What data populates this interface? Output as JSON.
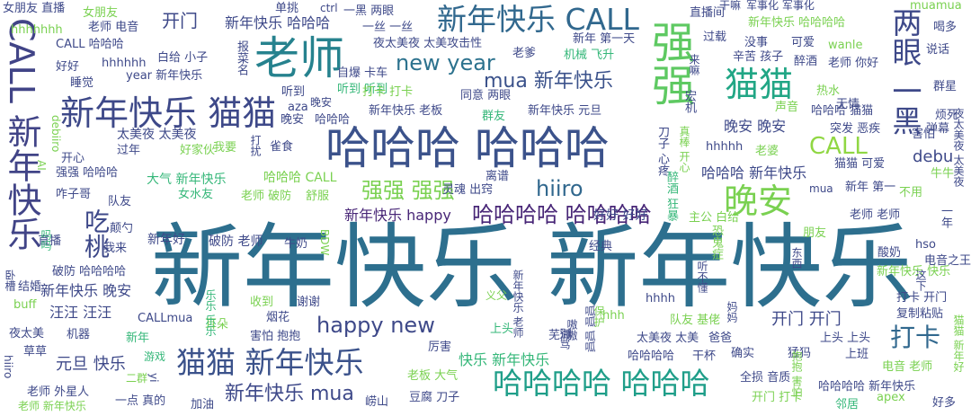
{
  "words": [
    {
      "text": "新年快乐 新年快乐",
      "color": "#2d6f8e"
    },
    {
      "text": "哈哈哈 哈哈哈",
      "color": "#3b528b"
    },
    {
      "text": "新年快乐 CALL",
      "color": "#31688e"
    },
    {
      "text": "老师",
      "color": "#26828e"
    },
    {
      "text": "新年快乐 猫猫",
      "color": "#3e4989"
    },
    {
      "text": "CALL 新年快乐",
      "color": "#414487"
    },
    {
      "text": "强强",
      "color": "#5ec962"
    },
    {
      "text": "两眼 一黑",
      "color": "#3e4989"
    },
    {
      "text": "猫猫",
      "color": "#21a685"
    },
    {
      "text": "猫猫 新年快乐",
      "color": "#3b528b"
    },
    {
      "text": "哈哈哈哈 哈哈哈",
      "color": "#1f9e89"
    },
    {
      "text": "晚安",
      "color": "#7ad151"
    },
    {
      "text": "new year",
      "color": "#2c728e"
    },
    {
      "text": "CALL",
      "color": "#90d743"
    },
    {
      "text": "吃桃",
      "color": "#3e4989"
    },
    {
      "text": "打卡",
      "color": "#31688e"
    },
    {
      "text": "happy new",
      "color": "#3e4989"
    },
    {
      "text": "强强 强强",
      "color": "#7ad151"
    },
    {
      "text": "hiiro",
      "color": "#31688e"
    },
    {
      "text": "哈哈哈哈 哈哈哈哈",
      "color": "#482677"
    },
    {
      "text": "新年快乐 mua",
      "color": "#3e4989"
    },
    {
      "text": "mua 新年快乐",
      "color": "#3b528b"
    },
    {
      "text": "开门",
      "color": "#3e4989"
    },
    {
      "text": "开门 开门",
      "color": "#3e4989"
    },
    {
      "text": "元旦 快乐",
      "color": "#3e4989"
    },
    {
      "text": "debu",
      "color": "#3e4989"
    },
    {
      "text": "快乐 新年快乐",
      "color": "#35b779"
    },
    {
      "text": "新年快乐 happy",
      "color": "#482677"
    },
    {
      "text": "新年快乐 晚安",
      "color": "#3e4989"
    },
    {
      "text": "汪汪 汪汪",
      "color": "#3e4989"
    },
    {
      "text": "新年快乐 哈哈哈",
      "color": "#3e4989"
    },
    {
      "text": "哈哈哈 新年快乐",
      "color": "#3e4989"
    },
    {
      "text": "晚安 晚安",
      "color": "#3e4989"
    },
    {
      "text": "好好 好好",
      "color": "#3e4989"
    },
    {
      "text": "破防 老师",
      "color": "#3e4989"
    },
    {
      "text": "新年好",
      "color": "#3e4989"
    },
    {
      "text": "大气 新年快乐",
      "color": "#35b779"
    },
    {
      "text": "哈哈哈 CALL",
      "color": "#7ad151"
    },
    {
      "text": "太美夜 太美夜",
      "color": "#3e4989"
    },
    {
      "text": "女朋友 直播",
      "color": "#3e4989"
    },
    {
      "text": "女朋友",
      "color": "#7ad151"
    },
    {
      "text": "单挑",
      "color": "#3e4989"
    },
    {
      "text": "ctrl",
      "color": "#3e4989"
    },
    {
      "text": "一黑 两眼",
      "color": "#3e4989"
    },
    {
      "text": "一丝 一丝",
      "color": "#3e4989"
    },
    {
      "text": "夜太美夜 太美攻击性",
      "color": "#3e4989"
    },
    {
      "text": "hhhhhhh",
      "color": "#7ad151"
    },
    {
      "text": "老师 电音",
      "color": "#3e4989"
    },
    {
      "text": "CALL 哈哈哈",
      "color": "#3e4989"
    },
    {
      "text": "好好",
      "color": "#3e4989"
    },
    {
      "text": "hhhhhh",
      "color": "#3e4989"
    },
    {
      "text": "白给 小子",
      "color": "#3e4989"
    },
    {
      "text": "year 新年快乐",
      "color": "#3e4989"
    },
    {
      "text": "直播间",
      "color": "#3e4989"
    },
    {
      "text": "干嘛",
      "color": "#3e4989"
    },
    {
      "text": "军事化 军事化",
      "color": "#3e4989"
    },
    {
      "text": "muamua",
      "color": "#7ad151"
    },
    {
      "text": "喝多",
      "color": "#3e4989"
    },
    {
      "text": "新年快乐 哈哈哈哈",
      "color": "#7ad151"
    },
    {
      "text": "说话",
      "color": "#3e4989"
    },
    {
      "text": "过载",
      "color": "#3e4989"
    },
    {
      "text": "没事",
      "color": "#3e4989"
    },
    {
      "text": "可爱",
      "color": "#3e4989"
    },
    {
      "text": "wanle",
      "color": "#7ad151"
    },
    {
      "text": "辛苦 孩子",
      "color": "#3e4989"
    },
    {
      "text": "醉酒",
      "color": "#3e4989"
    },
    {
      "text": "老师 你好",
      "color": "#3e4989"
    },
    {
      "text": "新年 第一天",
      "color": "#3e4989"
    },
    {
      "text": "老爹",
      "color": "#3e4989"
    },
    {
      "text": "机械 飞升",
      "color": "#35b779"
    },
    {
      "text": "自爆 卡车",
      "color": "#3e4989"
    },
    {
      "text": "听到 听到",
      "color": "#35b779"
    },
    {
      "text": "听到",
      "color": "#3e4989"
    },
    {
      "text": "打卡 打卡",
      "color": "#7ad151"
    },
    {
      "text": "同意 两眼",
      "color": "#3e4989"
    },
    {
      "text": "群友",
      "color": "#35b779"
    },
    {
      "text": "新年快乐 老板",
      "color": "#3e4989"
    },
    {
      "text": "新年快乐 元旦",
      "color": "#3e4989"
    },
    {
      "text": "热水",
      "color": "#7ad151"
    },
    {
      "text": "无情",
      "color": "#3e4989"
    },
    {
      "text": "群星",
      "color": "#3e4989"
    },
    {
      "text": "烦死",
      "color": "#3e4989"
    },
    {
      "text": "声音",
      "color": "#7ad151"
    },
    {
      "text": "哈哈哈 猫猫",
      "color": "#3e4989"
    },
    {
      "text": "突发 恶疾",
      "color": "#3e4989"
    },
    {
      "text": "害怕",
      "color": "#3e4989"
    },
    {
      "text": "弹幕",
      "color": "#3e4989"
    },
    {
      "text": "睡觉",
      "color": "#3e4989"
    },
    {
      "text": "开心",
      "color": "#3e4989"
    },
    {
      "text": "过年",
      "color": "#3e4989"
    },
    {
      "text": "好家伙",
      "color": "#7ad151"
    },
    {
      "text": "我要",
      "color": "#7ad151"
    },
    {
      "text": "雀食",
      "color": "#3e4989"
    },
    {
      "text": "强强 哈哈哈",
      "color": "#3e4989"
    },
    {
      "text": "咋子哥",
      "color": "#3e4989"
    },
    {
      "text": "队友",
      "color": "#3e4989"
    },
    {
      "text": "女水友",
      "color": "#35b779"
    },
    {
      "text": "老师 破防",
      "color": "#7ad151"
    },
    {
      "text": "舒服",
      "color": "#7ad151"
    },
    {
      "text": "离谱",
      "color": "#3e4989"
    },
    {
      "text": "灵魂 出窍",
      "color": "#3e4989"
    },
    {
      "text": "hhhhh",
      "color": "#3e4989"
    },
    {
      "text": "老婆",
      "color": "#7ad151"
    },
    {
      "text": "猫猫 可爱",
      "color": "#3e4989"
    },
    {
      "text": "牛牛",
      "color": "#7ad151"
    },
    {
      "text": "新年 第一",
      "color": "#3e4989"
    },
    {
      "text": "不用",
      "color": "#7ad151"
    },
    {
      "text": "mua",
      "color": "#3e4989"
    },
    {
      "text": "一年",
      "color": "#3e4989"
    },
    {
      "text": "颠勺",
      "color": "#3e4989"
    },
    {
      "text": "我来",
      "color": "#3e4989"
    },
    {
      "text": "牛奶",
      "color": "#3e4989"
    },
    {
      "text": "直播",
      "color": "#3e4989"
    },
    {
      "text": "朋友",
      "color": "#7ad151"
    },
    {
      "text": "老师 老师",
      "color": "#3e4989"
    },
    {
      "text": "hso",
      "color": "#3e4989"
    },
    {
      "text": "电音之王",
      "color": "#3e4989"
    },
    {
      "text": "主公 白给",
      "color": "#7ad151"
    },
    {
      "text": "经典",
      "color": "#3e4989"
    },
    {
      "text": "酸奶",
      "color": "#3e4989"
    },
    {
      "text": "新年快乐 快乐",
      "color": "#7ad151"
    },
    {
      "text": "破防 哈哈哈哈",
      "color": "#3e4989"
    },
    {
      "text": "结婚",
      "color": "#3e4989"
    },
    {
      "text": "收到",
      "color": "#7ad151"
    },
    {
      "text": "谢谢",
      "color": "#3e4989"
    },
    {
      "text": "buff",
      "color": "#7ad151"
    },
    {
      "text": "CALLmua",
      "color": "#3e4989"
    },
    {
      "text": "烟花",
      "color": "#3e4989"
    },
    {
      "text": "hhhh",
      "color": "#3e4989"
    },
    {
      "text": "打卡 开门",
      "color": "#3e4989"
    },
    {
      "text": "复制粘贴",
      "color": "#3e4989"
    },
    {
      "text": "耳朵",
      "color": "#7ad151"
    },
    {
      "text": "害怕 抱抱",
      "color": "#3e4989"
    },
    {
      "text": "上头",
      "color": "#35b779"
    },
    {
      "text": "hhh",
      "color": "#7ad151"
    },
    {
      "text": "队友 基佬",
      "color": "#7ad151"
    },
    {
      "text": "夜太美",
      "color": "#3e4989"
    },
    {
      "text": "机器",
      "color": "#3e4989"
    },
    {
      "text": "新年",
      "color": "#35b779"
    },
    {
      "text": "芜湖",
      "color": "#3e4989"
    },
    {
      "text": "太美夜 太美",
      "color": "#3e4989"
    },
    {
      "text": "爸爸",
      "color": "#3e4989"
    },
    {
      "text": "上头 上头",
      "color": "#3e4989"
    },
    {
      "text": "上班",
      "color": "#3e4989"
    },
    {
      "text": "确实",
      "color": "#3e4989"
    },
    {
      "text": "猛犸",
      "color": "#3e4989"
    },
    {
      "text": "草草",
      "color": "#3e4989"
    },
    {
      "text": "厉害",
      "color": "#3e4989"
    },
    {
      "text": "游戏",
      "color": "#35b779"
    },
    {
      "text": "哈哈哈哈",
      "color": "#3e4989"
    },
    {
      "text": "干杯",
      "color": "#3e4989"
    },
    {
      "text": "电音 老师",
      "color": "#7ad151"
    },
    {
      "text": "全损 音质",
      "color": "#3e4989"
    },
    {
      "text": "老板 大气",
      "color": "#7ad151"
    },
    {
      "text": "老师 外星人",
      "color": "#3e4989"
    },
    {
      "text": "二群",
      "color": "#7ad151"
    },
    {
      "text": "哈哈哈哈 新年快乐",
      "color": "#3e4989"
    },
    {
      "text": "一点 真的",
      "color": "#3e4989"
    },
    {
      "text": "加油",
      "color": "#3e4989"
    },
    {
      "text": "老师 新年快乐",
      "color": "#7ad151"
    },
    {
      "text": "崂山",
      "color": "#3e4989"
    },
    {
      "text": "豆腐 刀子",
      "color": "#3e4989"
    },
    {
      "text": "开门 打卡",
      "color": "#7ad151"
    },
    {
      "text": "邻居",
      "color": "#35b779"
    },
    {
      "text": "apex",
      "color": "#7ad151"
    },
    {
      "text": "好多",
      "color": "#3e4989"
    },
    {
      "text": "hiiro",
      "color": "#3e4989"
    },
    {
      "text": "yi",
      "color": "#3e4989"
    },
    {
      "text": "宏机",
      "color": "#3e4989"
    },
    {
      "text": "来嘛",
      "color": "#3e4989"
    },
    {
      "text": "aza",
      "color": "#3e4989"
    },
    {
      "text": "晚安",
      "color": "#3e4989"
    },
    {
      "text": "哈哈哈",
      "color": "#3e4989"
    },
    {
      "text": "debiiro",
      "color": "#7ad151"
    },
    {
      "text": "AI",
      "color": "#7ad151"
    },
    {
      "text": "吗吗",
      "color": "#35b779"
    },
    {
      "text": "BDW",
      "color": "#7ad151"
    },
    {
      "text": "刀子 心疼",
      "color": "#3e4989"
    },
    {
      "text": "真棒 开心",
      "color": "#7ad151"
    },
    {
      "text": "恐鬼症",
      "color": "#7ad151"
    },
    {
      "text": "醉酒 狂暴",
      "color": "#35b779"
    },
    {
      "text": "听不懂",
      "color": "#3e4989"
    },
    {
      "text": "夜太美夜 太美夜",
      "color": "#3e4989"
    },
    {
      "text": "东西",
      "color": "#3e4989"
    },
    {
      "text": "这下",
      "color": "#3e4989"
    },
    {
      "text": "猫猫 新年好",
      "color": "#7ad151"
    },
    {
      "text": "乐乐 乐乐",
      "color": "#35b779"
    },
    {
      "text": "卧槽",
      "color": "#3e4989"
    },
    {
      "text": "义父",
      "color": "#7ad151"
    },
    {
      "text": "新年快乐 老师",
      "color": "#3e4989"
    },
    {
      "text": "呱呱 呱呱",
      "color": "#3e4989"
    },
    {
      "text": "别骂",
      "color": "#3e4989"
    },
    {
      "text": "保护",
      "color": "#7ad151"
    },
    {
      "text": "抱抱 害怕",
      "color": "#7ad151"
    },
    {
      "text": "妈妈",
      "color": "#3e4989"
    },
    {
      "text": "打扰",
      "color": "#3e4989"
    },
    {
      "text": "嗷嗷",
      "color": "#3e4989"
    },
    {
      "text": "报菜名",
      "color": "#3e4989"
    },
    {
      "text": "晚安",
      "color": "#3e4989"
    }
  ]
}
